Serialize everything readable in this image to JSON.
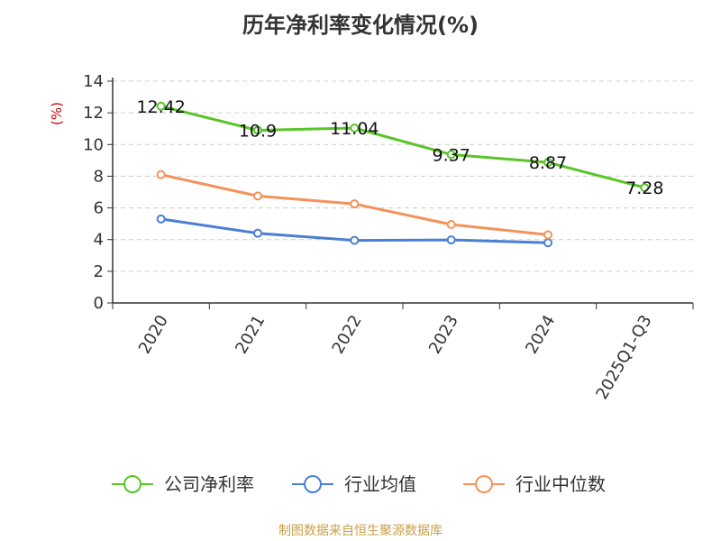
{
  "title": "历年净利率变化情况(%)",
  "source": "制图数据来自恒生聚源数据库",
  "chart_data": {
    "type": "line",
    "title": "历年净利率变化情况(%)",
    "ylabel": "(%)",
    "categories": [
      "2020",
      "2021",
      "2022",
      "2023",
      "2024",
      "2025Q1-Q3"
    ],
    "ylim": [
      0,
      14
    ],
    "yticks": [
      0,
      2,
      4,
      6,
      8,
      10,
      12,
      14
    ],
    "grid": true,
    "legend_position": "bottom",
    "series": [
      {
        "name": "公司净利率",
        "color": "#5ac42a",
        "values": [
          12.42,
          10.9,
          11.04,
          9.37,
          8.87,
          7.28
        ],
        "labels": [
          "12.42",
          "10.9",
          "11.04",
          "9.37",
          "8.87",
          "7.28"
        ]
      },
      {
        "name": "行业均值",
        "color": "#4a7fd6",
        "values": [
          5.3,
          4.4,
          3.95,
          3.98,
          3.8,
          null
        ]
      },
      {
        "name": "行业中位数",
        "color": "#f4925a",
        "values": [
          8.1,
          6.75,
          6.25,
          4.95,
          4.3,
          null
        ]
      }
    ]
  }
}
